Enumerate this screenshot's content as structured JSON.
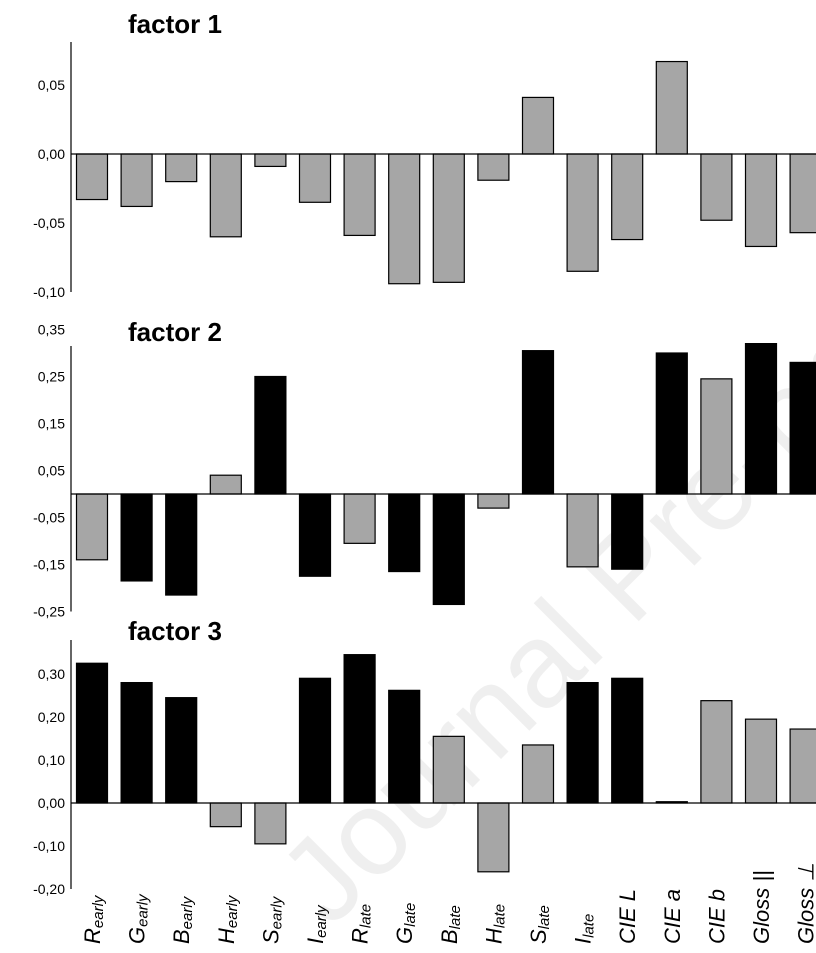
{
  "watermark": "Journal Pre-proof",
  "chart_data": [
    {
      "type": "bar",
      "title": "factor 1",
      "ylim": [
        -0.1,
        0.08
      ],
      "yticks": [
        "0,05",
        "0,00",
        "-0,05",
        "-0,10"
      ],
      "series": [
        {
          "values": [
            -0.033,
            -0.038,
            -0.02,
            -0.06,
            -0.009,
            -0.035,
            -0.059,
            -0.094,
            -0.093,
            -0.019,
            0.041,
            -0.085,
            -0.062,
            0.067,
            -0.048,
            -0.067,
            -0.057
          ],
          "highlight": [
            false,
            false,
            false,
            false,
            false,
            false,
            false,
            false,
            false,
            false,
            false,
            false,
            false,
            false,
            false,
            false,
            false
          ]
        }
      ]
    },
    {
      "type": "bar",
      "title": "factor 2",
      "ylim": [
        -0.25,
        0.39
      ],
      "yticks": [
        "0,35",
        "0,25",
        "0,15",
        "0,05",
        "-0,05",
        "-0,15",
        "-0,25"
      ],
      "series": [
        {
          "values": [
            -0.14,
            -0.185,
            -0.215,
            0.04,
            0.25,
            -0.175,
            -0.105,
            -0.165,
            -0.235,
            -0.03,
            0.305,
            -0.155,
            -0.16,
            0.3,
            0.245,
            0.32,
            0.28
          ],
          "highlight": [
            false,
            true,
            true,
            false,
            true,
            true,
            false,
            true,
            true,
            false,
            true,
            false,
            true,
            true,
            false,
            true,
            true
          ]
        }
      ]
    },
    {
      "type": "bar",
      "title": "factor 3",
      "ylim": [
        -0.2,
        0.38
      ],
      "yticks": [
        "0,30",
        "0,20",
        "0,10",
        "0,00",
        "-0,10",
        "-0,20"
      ],
      "series": [
        {
          "values": [
            0.325,
            0.28,
            0.245,
            -0.055,
            -0.095,
            0.29,
            0.345,
            0.262,
            0.155,
            -0.16,
            0.135,
            0.28,
            0.29,
            0.003,
            0.238,
            0.195,
            0.172
          ],
          "highlight": [
            true,
            true,
            true,
            false,
            false,
            true,
            true,
            true,
            false,
            false,
            false,
            true,
            true,
            true,
            false,
            false,
            false
          ]
        }
      ]
    }
  ],
  "categories": [
    {
      "main": "R",
      "sub": "early"
    },
    {
      "main": "G",
      "sub": "early"
    },
    {
      "main": "B",
      "sub": "early"
    },
    {
      "main": "H",
      "sub": "early"
    },
    {
      "main": "S",
      "sub": "early"
    },
    {
      "main": "I",
      "sub": "early"
    },
    {
      "main": "R",
      "sub": "late"
    },
    {
      "main": "G",
      "sub": "late"
    },
    {
      "main": "B",
      "sub": "late"
    },
    {
      "main": "H",
      "sub": "late"
    },
    {
      "main": "S",
      "sub": "late"
    },
    {
      "main": "I",
      "sub": "late"
    },
    {
      "main": "CIE L",
      "sub": ""
    },
    {
      "main": "CIE a",
      "sub": ""
    },
    {
      "main": "CIE b",
      "sub": ""
    },
    {
      "main": "Gloss ||",
      "sub": ""
    },
    {
      "main": "Gloss ⊥",
      "sub": ""
    }
  ],
  "colors": {
    "highlight": "#000000",
    "normal": "#a6a6a6",
    "outline": "#000000"
  }
}
